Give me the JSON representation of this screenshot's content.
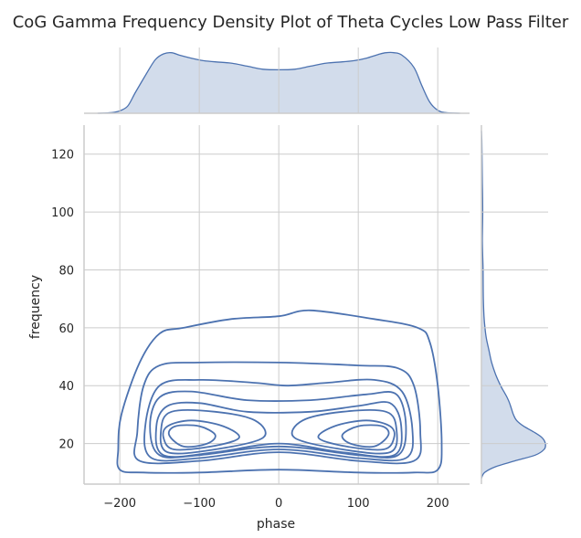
{
  "chart_data": {
    "type": "kde-joint",
    "title": "CoG Gamma Frequency Density Plot of Theta Cycles Low Pass Filter",
    "xlabel": "phase",
    "ylabel": "frequency",
    "xlim": [
      -245,
      240
    ],
    "ylim": [
      6,
      130
    ],
    "xticks": [
      -200,
      -100,
      0,
      100,
      200
    ],
    "xtick_labels": [
      "−200",
      "−100",
      "0",
      "100",
      "200"
    ],
    "yticks": [
      20,
      40,
      60,
      80,
      100,
      120
    ],
    "ytick_labels": [
      "20",
      "40",
      "60",
      "80",
      "100",
      "120"
    ],
    "grid": true,
    "color": "#4c72b0",
    "x_marginal": {
      "x": [
        -228,
        -210,
        -200,
        -190,
        -180,
        -165,
        -155,
        -145,
        -135,
        -125,
        -110,
        -95,
        -80,
        -60,
        -40,
        -20,
        0,
        20,
        40,
        60,
        80,
        95,
        110,
        125,
        135,
        145,
        155,
        170,
        180,
        190,
        200,
        210,
        228
      ],
      "density": [
        0.0,
        0.01,
        0.04,
        0.12,
        0.35,
        0.68,
        0.88,
        0.97,
        0.99,
        0.95,
        0.9,
        0.86,
        0.84,
        0.82,
        0.77,
        0.72,
        0.71,
        0.72,
        0.77,
        0.82,
        0.84,
        0.86,
        0.9,
        0.96,
        0.99,
        0.99,
        0.95,
        0.75,
        0.45,
        0.18,
        0.05,
        0.01,
        0.0
      ]
    },
    "y_marginal": {
      "y": [
        8,
        10,
        12,
        14,
        16,
        18,
        20,
        22,
        24,
        26,
        28,
        30,
        32,
        34,
        36,
        38,
        40,
        44,
        48,
        52,
        56,
        60,
        64,
        70,
        80,
        90,
        100,
        110,
        118,
        125,
        128
      ],
      "density": [
        0.0,
        0.05,
        0.22,
        0.52,
        0.84,
        0.98,
        1.0,
        0.95,
        0.82,
        0.66,
        0.55,
        0.5,
        0.47,
        0.44,
        0.4,
        0.35,
        0.3,
        0.22,
        0.16,
        0.12,
        0.08,
        0.055,
        0.04,
        0.03,
        0.025,
        0.015,
        0.02,
        0.015,
        0.01,
        0.005,
        0.0
      ]
    },
    "contour_levels": [
      [
        [
          -200,
          11
        ],
        [
          -170,
          10
        ],
        [
          -100,
          10
        ],
        [
          0,
          11
        ],
        [
          100,
          10
        ],
        [
          170,
          10
        ],
        [
          200,
          11
        ],
        [
          205,
          20
        ],
        [
          200,
          40
        ],
        [
          190,
          55
        ],
        [
          175,
          60
        ],
        [
          120,
          63
        ],
        [
          40,
          66
        ],
        [
          0,
          64
        ],
        [
          -60,
          63
        ],
        [
          -120,
          60
        ],
        [
          -150,
          58
        ],
        [
          -175,
          48
        ],
        [
          -198,
          30
        ],
        [
          -202,
          18
        ],
        [
          -200,
          11
        ]
      ],
      [
        [
          -175,
          14
        ],
        [
          -100,
          14
        ],
        [
          0,
          17
        ],
        [
          100,
          14
        ],
        [
          170,
          14
        ],
        [
          178,
          24
        ],
        [
          170,
          40
        ],
        [
          150,
          46
        ],
        [
          100,
          47
        ],
        [
          0,
          48
        ],
        [
          -100,
          48
        ],
        [
          -150,
          47
        ],
        [
          -170,
          40
        ],
        [
          -178,
          24
        ],
        [
          -175,
          14
        ]
      ],
      [
        [
          -160,
          15
        ],
        [
          -100,
          15
        ],
        [
          0,
          18
        ],
        [
          100,
          15
        ],
        [
          160,
          15
        ],
        [
          168,
          25
        ],
        [
          155,
          38
        ],
        [
          120,
          42
        ],
        [
          60,
          41
        ],
        [
          10,
          40
        ],
        [
          -30,
          41
        ],
        [
          -100,
          42
        ],
        [
          -150,
          40
        ],
        [
          -168,
          26
        ],
        [
          -160,
          15
        ]
      ],
      [
        [
          -150,
          16
        ],
        [
          -100,
          16
        ],
        [
          0,
          19
        ],
        [
          100,
          16
        ],
        [
          150,
          16
        ],
        [
          160,
          26
        ],
        [
          148,
          37
        ],
        [
          110,
          37
        ],
        [
          40,
          35
        ],
        [
          -40,
          35
        ],
        [
          -110,
          38
        ],
        [
          -150,
          36
        ],
        [
          -162,
          26
        ],
        [
          -150,
          16
        ]
      ],
      [
        [
          -145,
          16
        ],
        [
          -80,
          17
        ],
        [
          0,
          20
        ],
        [
          80,
          17
        ],
        [
          145,
          16
        ],
        [
          154,
          26
        ],
        [
          140,
          34
        ],
        [
          100,
          33
        ],
        [
          40,
          31
        ],
        [
          -40,
          31
        ],
        [
          -100,
          34
        ],
        [
          -140,
          33
        ],
        [
          -154,
          26
        ],
        [
          -145,
          16
        ]
      ],
      [
        [
          -140,
          17
        ],
        [
          -80,
          18
        ],
        [
          -20,
          22
        ],
        [
          -30,
          28
        ],
        [
          -80,
          31
        ],
        [
          -135,
          31
        ],
        [
          -148,
          25
        ],
        [
          -140,
          17
        ]
      ],
      [
        [
          140,
          17
        ],
        [
          80,
          18
        ],
        [
          20,
          22
        ],
        [
          30,
          28
        ],
        [
          80,
          31
        ],
        [
          135,
          31
        ],
        [
          148,
          25
        ],
        [
          140,
          17
        ]
      ],
      [
        [
          -132,
          18
        ],
        [
          -85,
          19
        ],
        [
          -50,
          22
        ],
        [
          -70,
          26
        ],
        [
          -110,
          28
        ],
        [
          -140,
          26
        ],
        [
          -145,
          22
        ],
        [
          -132,
          18
        ]
      ],
      [
        [
          132,
          18
        ],
        [
          85,
          19
        ],
        [
          50,
          22
        ],
        [
          70,
          26
        ],
        [
          110,
          28
        ],
        [
          140,
          26
        ],
        [
          145,
          22
        ],
        [
          132,
          18
        ]
      ],
      [
        [
          -120,
          19
        ],
        [
          -90,
          20
        ],
        [
          -80,
          23
        ],
        [
          -100,
          26
        ],
        [
          -130,
          26
        ],
        [
          -138,
          23
        ],
        [
          -120,
          19
        ]
      ],
      [
        [
          120,
          19
        ],
        [
          90,
          20
        ],
        [
          80,
          23
        ],
        [
          100,
          26
        ],
        [
          130,
          26
        ],
        [
          138,
          23
        ],
        [
          120,
          19
        ]
      ]
    ]
  }
}
